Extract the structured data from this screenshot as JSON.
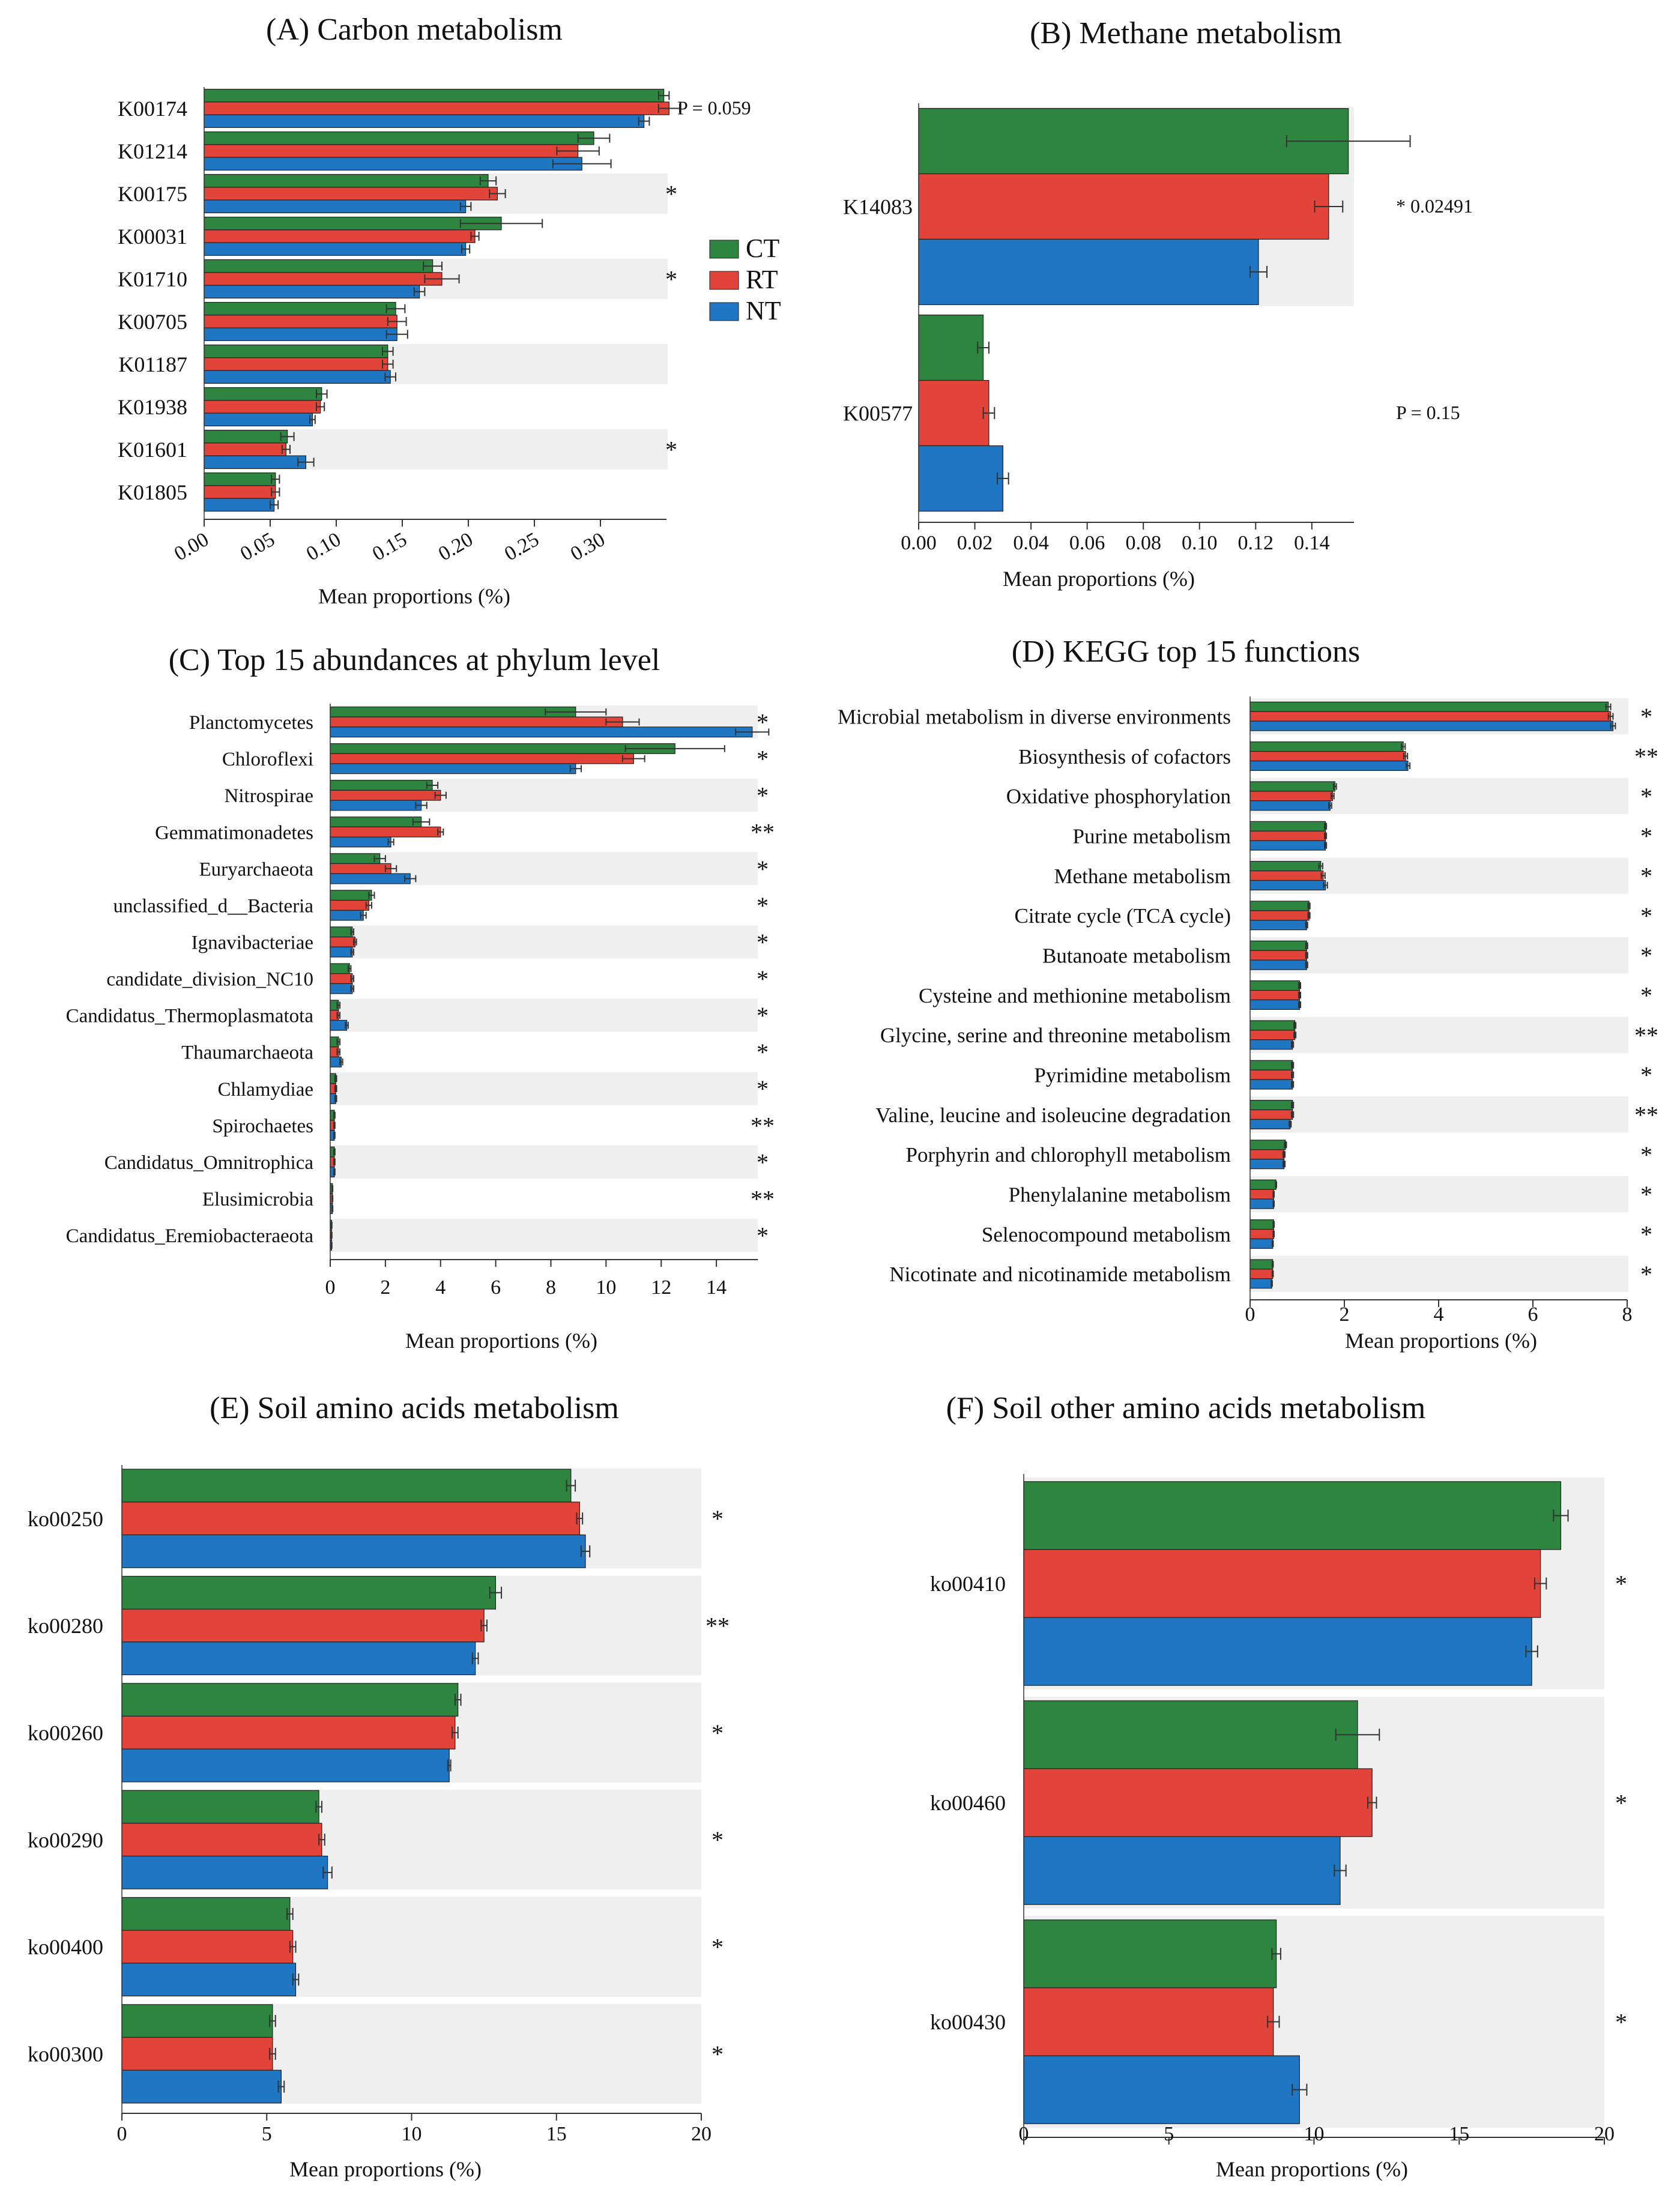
{
  "colors": {
    "CT": "#2e8540",
    "RT": "#e2443a",
    "NT": "#1f77c4",
    "band": "#efefef",
    "axis": "#333333"
  },
  "legend": [
    {
      "key": "CT",
      "label": "CT"
    },
    {
      "key": "RT",
      "label": "RT"
    },
    {
      "key": "NT",
      "label": "NT"
    }
  ],
  "chart_data": [
    {
      "id": "A",
      "type": "bar",
      "orientation": "horizontal",
      "title": "(A) Carbon metabolism",
      "xlabel": "Mean proportions (%)",
      "xlim": [
        0,
        0.35
      ],
      "xticks": [
        0,
        0.05,
        0.1,
        0.15,
        0.2,
        0.25,
        0.3
      ],
      "xtick_labels": [
        "0.00",
        "0.05",
        "0.10",
        "0.15",
        "0.20",
        "0.25",
        "0.30"
      ],
      "categories": [
        "K00174",
        "K01214",
        "K00175",
        "K00031",
        "K01710",
        "K00705",
        "K01187",
        "K01938",
        "K01601",
        "K01805"
      ],
      "series": [
        {
          "name": "CT",
          "values": [
            0.348,
            0.295,
            0.215,
            0.225,
            0.173,
            0.145,
            0.139,
            0.089,
            0.063,
            0.054
          ],
          "errors": [
            0.004,
            0.012,
            0.006,
            0.031,
            0.007,
            0.007,
            0.004,
            0.004,
            0.005,
            0.003
          ]
        },
        {
          "name": "RT",
          "values": [
            0.352,
            0.283,
            0.222,
            0.205,
            0.18,
            0.146,
            0.139,
            0.088,
            0.062,
            0.054
          ],
          "errors": [
            0.008,
            0.016,
            0.006,
            0.003,
            0.013,
            0.007,
            0.004,
            0.003,
            0.003,
            0.003
          ]
        },
        {
          "name": "NT",
          "values": [
            0.333,
            0.286,
            0.198,
            0.198,
            0.163,
            0.146,
            0.141,
            0.082,
            0.077,
            0.053
          ],
          "errors": [
            0.004,
            0.022,
            0.004,
            0.003,
            0.004,
            0.008,
            0.004,
            0.002,
            0.006,
            0.003
          ]
        }
      ],
      "band_rows": [
        2,
        4,
        6,
        8
      ],
      "annotations": [
        {
          "row": 0,
          "text": "P = 0.059"
        },
        {
          "row": 2,
          "text": "*"
        },
        {
          "row": 4,
          "text": "*"
        },
        {
          "row": 8,
          "text": "*"
        }
      ]
    },
    {
      "id": "B",
      "type": "bar",
      "orientation": "horizontal",
      "title": "(B) Methane metabolism",
      "xlabel": "Mean proportions (%)",
      "xlim": [
        0,
        0.155
      ],
      "xticks": [
        0,
        0.02,
        0.04,
        0.06,
        0.08,
        0.1,
        0.12,
        0.14
      ],
      "xtick_labels": [
        "0.00",
        "0.02",
        "0.04",
        "0.06",
        "0.08",
        "0.10",
        "0.12",
        "0.14"
      ],
      "categories": [
        "K14083",
        "K00577"
      ],
      "series": [
        {
          "name": "CT",
          "values": [
            0.153,
            0.023
          ],
          "errors": [
            0.022,
            0.002
          ]
        },
        {
          "name": "RT",
          "values": [
            0.146,
            0.025
          ],
          "errors": [
            0.005,
            0.002
          ]
        },
        {
          "name": "NT",
          "values": [
            0.121,
            0.03
          ],
          "errors": [
            0.003,
            0.002
          ]
        }
      ],
      "band_rows": [
        0
      ],
      "annotations": [
        {
          "row": 0,
          "text": "*  0.02491"
        },
        {
          "row": 1,
          "text": "P = 0.15"
        }
      ]
    },
    {
      "id": "C",
      "type": "bar",
      "orientation": "horizontal",
      "title": "(C) Top 15 abundances at phylum level",
      "xlabel": "Mean proportions (%)",
      "xlim": [
        0,
        15.5
      ],
      "xticks": [
        0,
        2,
        4,
        6,
        8,
        10,
        12,
        14
      ],
      "xtick_labels": [
        "0",
        "2",
        "4",
        "6",
        "8",
        "10",
        "12",
        "14"
      ],
      "categories": [
        "Planctomycetes",
        "Chloroflexi",
        "Nitrospirae",
        "Gemmatimonadetes",
        "Euryarchaeota",
        "unclassified_d__Bacteria",
        "Ignavibacteriae",
        "candidate_division_NC10",
        "Candidatus_Thermoplasmatota",
        "Thaumarchaeota",
        "Chlamydiae",
        "Spirochaetes",
        "Candidatus_Omnitrophica",
        "Elusimicrobia",
        "Candidatus_Eremiobacteraeota"
      ],
      "series": [
        {
          "name": "CT",
          "values": [
            8.9,
            12.5,
            3.7,
            3.3,
            1.8,
            1.5,
            0.8,
            0.7,
            0.3,
            0.3,
            0.2,
            0.15,
            0.15,
            0.08,
            0.05
          ],
          "errors": [
            1.1,
            1.8,
            0.2,
            0.3,
            0.2,
            0.1,
            0.05,
            0.05,
            0.05,
            0.05,
            0.03,
            0.02,
            0.02,
            0.01,
            0.01
          ]
        },
        {
          "name": "RT",
          "values": [
            10.6,
            11.0,
            4.0,
            4.0,
            2.2,
            1.4,
            0.9,
            0.8,
            0.3,
            0.3,
            0.2,
            0.15,
            0.15,
            0.08,
            0.05
          ],
          "errors": [
            0.6,
            0.4,
            0.2,
            0.1,
            0.2,
            0.1,
            0.05,
            0.05,
            0.05,
            0.05,
            0.03,
            0.02,
            0.02,
            0.01,
            0.01
          ]
        },
        {
          "name": "NT",
          "values": [
            15.3,
            8.9,
            3.3,
            2.2,
            2.9,
            1.2,
            0.8,
            0.8,
            0.6,
            0.4,
            0.2,
            0.15,
            0.15,
            0.08,
            0.05
          ],
          "errors": [
            0.6,
            0.2,
            0.2,
            0.1,
            0.2,
            0.1,
            0.05,
            0.05,
            0.05,
            0.05,
            0.03,
            0.02,
            0.02,
            0.01,
            0.01
          ]
        }
      ],
      "band_rows": [
        0,
        2,
        4,
        6,
        8,
        10,
        12,
        14
      ],
      "annotations": [
        {
          "row": 0,
          "text": "*"
        },
        {
          "row": 1,
          "text": "*"
        },
        {
          "row": 2,
          "text": "*"
        },
        {
          "row": 3,
          "text": "**"
        },
        {
          "row": 4,
          "text": "*"
        },
        {
          "row": 5,
          "text": "*"
        },
        {
          "row": 6,
          "text": "*"
        },
        {
          "row": 7,
          "text": "*"
        },
        {
          "row": 8,
          "text": "*"
        },
        {
          "row": 9,
          "text": "*"
        },
        {
          "row": 10,
          "text": "*"
        },
        {
          "row": 11,
          "text": "**"
        },
        {
          "row": 12,
          "text": "*"
        },
        {
          "row": 13,
          "text": "**"
        },
        {
          "row": 14,
          "text": "*"
        }
      ]
    },
    {
      "id": "D",
      "type": "bar",
      "orientation": "horizontal",
      "title": "(D) KEGG top 15 functions",
      "xlabel": "Mean proportions (%)",
      "xlim": [
        0,
        8
      ],
      "xticks": [
        0,
        2,
        4,
        6,
        8
      ],
      "xtick_labels": [
        "0",
        "2",
        "4",
        "6",
        "8"
      ],
      "categories": [
        "Microbial metabolism in diverse environments",
        "Biosynthesis of cofactors",
        "Oxidative phosphorylation",
        "Purine metabolism",
        "Methane metabolism",
        "Citrate cycle (TCA cycle)",
        "Butanoate metabolism",
        "Cysteine and methionine metabolism",
        "Glycine, serine and threonine metabolism",
        "Pyrimidine metabolism",
        "Valine, leucine and isoleucine degradation",
        "Porphyrin and chlorophyll metabolism",
        "Phenylalanine metabolism",
        "Selenocompound metabolism",
        "Nicotinate and nicotinamide metabolism"
      ],
      "series": [
        {
          "name": "CT",
          "values": [
            7.6,
            3.25,
            1.8,
            1.6,
            1.5,
            1.25,
            1.2,
            1.05,
            0.95,
            0.9,
            0.9,
            0.75,
            0.55,
            0.5,
            0.48
          ],
          "errors": [
            0.05,
            0.04,
            0.03,
            0.02,
            0.04,
            0.02,
            0.02,
            0.02,
            0.02,
            0.02,
            0.02,
            0.02,
            0.01,
            0.01,
            0.01
          ]
        },
        {
          "name": "RT",
          "values": [
            7.65,
            3.3,
            1.75,
            1.6,
            1.55,
            1.25,
            1.2,
            1.05,
            0.95,
            0.9,
            0.9,
            0.72,
            0.5,
            0.5,
            0.48
          ],
          "errors": [
            0.05,
            0.04,
            0.03,
            0.02,
            0.04,
            0.02,
            0.02,
            0.02,
            0.02,
            0.02,
            0.02,
            0.02,
            0.01,
            0.01,
            0.01
          ]
        },
        {
          "name": "NT",
          "values": [
            7.7,
            3.35,
            1.7,
            1.6,
            1.6,
            1.2,
            1.2,
            1.05,
            0.9,
            0.9,
            0.85,
            0.72,
            0.5,
            0.48,
            0.46
          ],
          "errors": [
            0.05,
            0.04,
            0.03,
            0.02,
            0.04,
            0.02,
            0.02,
            0.02,
            0.02,
            0.02,
            0.02,
            0.02,
            0.01,
            0.01,
            0.01
          ]
        }
      ],
      "band_rows": [
        0,
        2,
        4,
        6,
        8,
        10,
        12,
        14
      ],
      "annotations": [
        {
          "row": 0,
          "text": "*"
        },
        {
          "row": 1,
          "text": "**"
        },
        {
          "row": 2,
          "text": "*"
        },
        {
          "row": 3,
          "text": "*"
        },
        {
          "row": 4,
          "text": "*"
        },
        {
          "row": 5,
          "text": "*"
        },
        {
          "row": 6,
          "text": "*"
        },
        {
          "row": 7,
          "text": "*"
        },
        {
          "row": 8,
          "text": "**"
        },
        {
          "row": 9,
          "text": "*"
        },
        {
          "row": 10,
          "text": "**"
        },
        {
          "row": 11,
          "text": "*"
        },
        {
          "row": 12,
          "text": "*"
        },
        {
          "row": 13,
          "text": "*"
        },
        {
          "row": 14,
          "text": "*"
        }
      ]
    },
    {
      "id": "E",
      "type": "bar",
      "orientation": "horizontal",
      "title": "(E) Soil amino acids metabolism",
      "xlabel": "Mean proportions (%)",
      "xlim": [
        0,
        20
      ],
      "xticks": [
        0,
        5,
        10,
        15,
        20
      ],
      "xtick_labels": [
        "0",
        "5",
        "10",
        "15",
        "20"
      ],
      "categories": [
        "ko00250",
        "ko00280",
        "ko00260",
        "ko00290",
        "ko00400",
        "ko00300"
      ],
      "series": [
        {
          "name": "CT",
          "values": [
            15.5,
            12.9,
            11.6,
            6.8,
            5.8,
            5.2
          ],
          "errors": [
            0.15,
            0.2,
            0.1,
            0.1,
            0.1,
            0.1
          ]
        },
        {
          "name": "RT",
          "values": [
            15.8,
            12.5,
            11.5,
            6.9,
            5.9,
            5.2
          ],
          "errors": [
            0.1,
            0.1,
            0.1,
            0.1,
            0.1,
            0.1
          ]
        },
        {
          "name": "NT",
          "values": [
            16.0,
            12.2,
            11.3,
            7.1,
            6.0,
            5.5
          ],
          "errors": [
            0.15,
            0.1,
            0.05,
            0.15,
            0.1,
            0.1
          ]
        }
      ],
      "band_rows": [
        0,
        1,
        2,
        3,
        4,
        5
      ],
      "annotations": [
        {
          "row": 0,
          "text": "*"
        },
        {
          "row": 1,
          "text": "**"
        },
        {
          "row": 2,
          "text": "*"
        },
        {
          "row": 3,
          "text": "*"
        },
        {
          "row": 4,
          "text": "*"
        },
        {
          "row": 5,
          "text": "*"
        }
      ]
    },
    {
      "id": "F",
      "type": "bar",
      "orientation": "horizontal",
      "title": "(F) Soil other amino acids metabolism",
      "xlabel": "Mean proportions (%)",
      "xlim": [
        0,
        20
      ],
      "xticks": [
        0,
        5,
        10,
        15,
        20
      ],
      "xtick_labels": [
        "0",
        "5",
        "10",
        "15",
        "20"
      ],
      "categories": [
        "ko00410",
        "ko00460",
        "ko00430"
      ],
      "series": [
        {
          "name": "CT",
          "values": [
            18.5,
            11.5,
            8.7
          ],
          "errors": [
            0.25,
            0.75,
            0.15
          ]
        },
        {
          "name": "RT",
          "values": [
            17.8,
            12.0,
            8.6
          ],
          "errors": [
            0.2,
            0.15,
            0.2
          ]
        },
        {
          "name": "NT",
          "values": [
            17.5,
            10.9,
            9.5
          ],
          "errors": [
            0.2,
            0.2,
            0.25
          ]
        }
      ],
      "band_rows": [
        0,
        1,
        2
      ],
      "annotations": [
        {
          "row": 0,
          "text": "*"
        },
        {
          "row": 1,
          "text": "*"
        },
        {
          "row": 2,
          "text": "*"
        }
      ]
    }
  ]
}
